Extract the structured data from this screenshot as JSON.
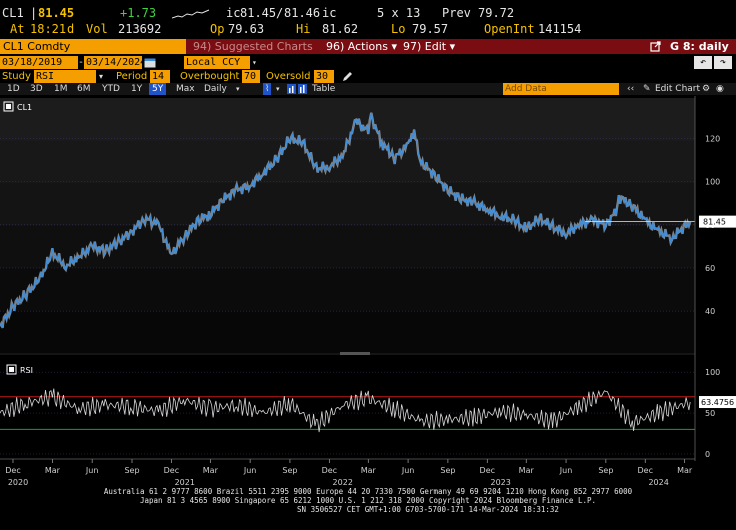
{
  "quote": {
    "ticker": "CL1",
    "last": "81.45",
    "change": "+1.73",
    "bid_label": "ic",
    "bid": "81.45",
    "ask": "81.46",
    "ask_label": "ic",
    "size": "5 x 13",
    "prev_label": "Prev",
    "prev": "79.72",
    "time_label": "At",
    "time": "18:21",
    "time_suffix": "d",
    "vol_label": "Vol",
    "vol": "213692",
    "open_label": "Op",
    "open": "79.63",
    "high_label": "Hi",
    "high": "81.62",
    "low_label": "Lo",
    "low": "79.57",
    "oi_label": "OpenInt",
    "oi": "141154"
  },
  "command_bar": {
    "security": "CL1 Comdty",
    "suggested": "94) Suggested Charts",
    "actions": "96) Actions",
    "edit": "97) Edit",
    "actions_arrow": "▾",
    "edit_arrow": "▾",
    "g_label": "G 8: daily"
  },
  "date_range": {
    "start": "03/18/2019",
    "end": "03/14/2024",
    "currency": "Local CCY"
  },
  "study": {
    "label": "Study",
    "name": "RSI",
    "period_label": "Period",
    "period": "14",
    "overbought_label": "Overbought",
    "overbought": "70",
    "oversold_label": "Oversold",
    "oversold": "30"
  },
  "toolbar": {
    "periods": [
      "1D",
      "3D",
      "1M",
      "6M",
      "YTD",
      "1Y",
      "5Y",
      "Max"
    ],
    "selected": "5Y",
    "frequency": "Daily",
    "table_label": "Table",
    "add_data_placeholder": "Add Data",
    "edit_chart": "Edit Chart"
  },
  "colors": {
    "orange": "#f59e00",
    "dark_red": "#7a0d12",
    "price_line": "#3c8ddb",
    "rsi_line": "#d8d8d8",
    "overbought_line": "#c01818",
    "oversold_line": "#1ea01e",
    "selected_blue": "#1f55c9"
  },
  "chart_data": {
    "type": "line",
    "panels": [
      {
        "legend": "CL1",
        "ylim": [
          22,
          135
        ],
        "y_ticks": [
          40,
          60,
          80,
          100,
          120
        ],
        "last_value_label": "81.45",
        "series": [
          {
            "name": "CL1",
            "x": [
              "2019-11-01",
              "2019-12-01",
              "2020-01-01",
              "2020-02-01",
              "2020-03-01",
              "2020-04-01",
              "2020-05-01",
              "2020-06-01",
              "2020-07-01",
              "2020-08-01",
              "2020-09-01",
              "2020-10-01",
              "2020-11-01",
              "2020-12-01",
              "2021-01-01",
              "2021-02-01",
              "2021-03-01",
              "2021-04-01",
              "2021-05-01",
              "2021-06-01",
              "2021-07-01",
              "2021-08-01",
              "2021-09-01",
              "2021-10-01",
              "2021-11-01",
              "2021-12-01",
              "2022-01-01",
              "2022-02-01",
              "2022-03-01",
              "2022-03-08",
              "2022-04-01",
              "2022-05-01",
              "2022-06-01",
              "2022-06-15",
              "2022-07-01",
              "2022-08-01",
              "2022-09-01",
              "2022-10-01",
              "2022-11-01",
              "2022-12-01",
              "2023-01-01",
              "2023-02-01",
              "2023-03-01",
              "2023-04-01",
              "2023-05-01",
              "2023-06-01",
              "2023-07-01",
              "2023-08-01",
              "2023-09-01",
              "2023-09-27",
              "2023-10-01",
              "2023-11-01",
              "2023-12-01",
              "2024-01-01",
              "2024-02-01",
              "2024-03-14"
            ],
            "values": [
              33,
              42,
              48,
              55,
              67,
              61,
              65,
              70,
              68,
              72,
              77,
              83,
              80,
              66,
              75,
              82,
              85,
              92,
              96,
              98,
              104,
              110,
              120,
              118,
              106,
              107,
              112,
              128,
              123,
              130,
              118,
              111,
              117,
              123,
              109,
              103,
              96,
              92,
              90,
              87,
              84,
              82,
              78,
              83,
              79,
              76,
              80,
              82,
              80,
              87,
              93,
              89,
              82,
              77,
              74,
              81.45
            ]
          }
        ]
      },
      {
        "legend": "RSI",
        "ylim": [
          -5,
          110
        ],
        "y_ticks": [
          0,
          50,
          100
        ],
        "reference_lines": [
          70,
          30
        ],
        "last_value_label": "63.4756",
        "series": [
          {
            "name": "RSI",
            "x": [
              "2019-11-01",
              "2020-01-01",
              "2020-03-01",
              "2020-05-01",
              "2020-07-01",
              "2020-09-01",
              "2020-11-01",
              "2021-01-01",
              "2021-03-01",
              "2021-05-01",
              "2021-07-01",
              "2021-09-01",
              "2021-11-01",
              "2022-01-01",
              "2022-03-01",
              "2022-05-01",
              "2022-07-01",
              "2022-09-01",
              "2022-11-01",
              "2023-01-01",
              "2023-03-01",
              "2023-05-01",
              "2023-07-01",
              "2023-09-01",
              "2023-11-01",
              "2024-01-01",
              "2024-03-14"
            ],
            "values": [
              50,
              62,
              70,
              55,
              60,
              58,
              52,
              66,
              55,
              60,
              50,
              62,
              35,
              60,
              68,
              55,
              40,
              42,
              45,
              52,
              48,
              40,
              58,
              76,
              38,
              50,
              63.4756
            ]
          }
        ]
      }
    ],
    "x_ticks": [
      "Dec",
      "Mar",
      "Jun",
      "Sep",
      "Dec",
      "Mar",
      "Jun",
      "Sep",
      "Dec",
      "Mar",
      "Jun",
      "Sep",
      "Dec",
      "Mar",
      "Jun",
      "Sep",
      "Dec",
      "Mar"
    ],
    "year_labels": [
      "2020",
      "2021",
      "2022",
      "2023",
      "2024"
    ]
  },
  "footer": {
    "line1": "Australia 61 2 9777 8600 Brazil 5511 2395 9000 Europe 44 20 7330 7500 Germany 49 69 9204 1210 Hong Kong 852 2977 6000",
    "line2": "Japan 81 3 4565 8900      Singapore 65 6212 1000      U.S. 1 212 318 2000          Copyright 2024 Bloomberg Finance L.P.",
    "line3": "SN 3506527 CET  GMT+1:00 G703-5700-171 14-Mar-2024 18:31:32"
  }
}
